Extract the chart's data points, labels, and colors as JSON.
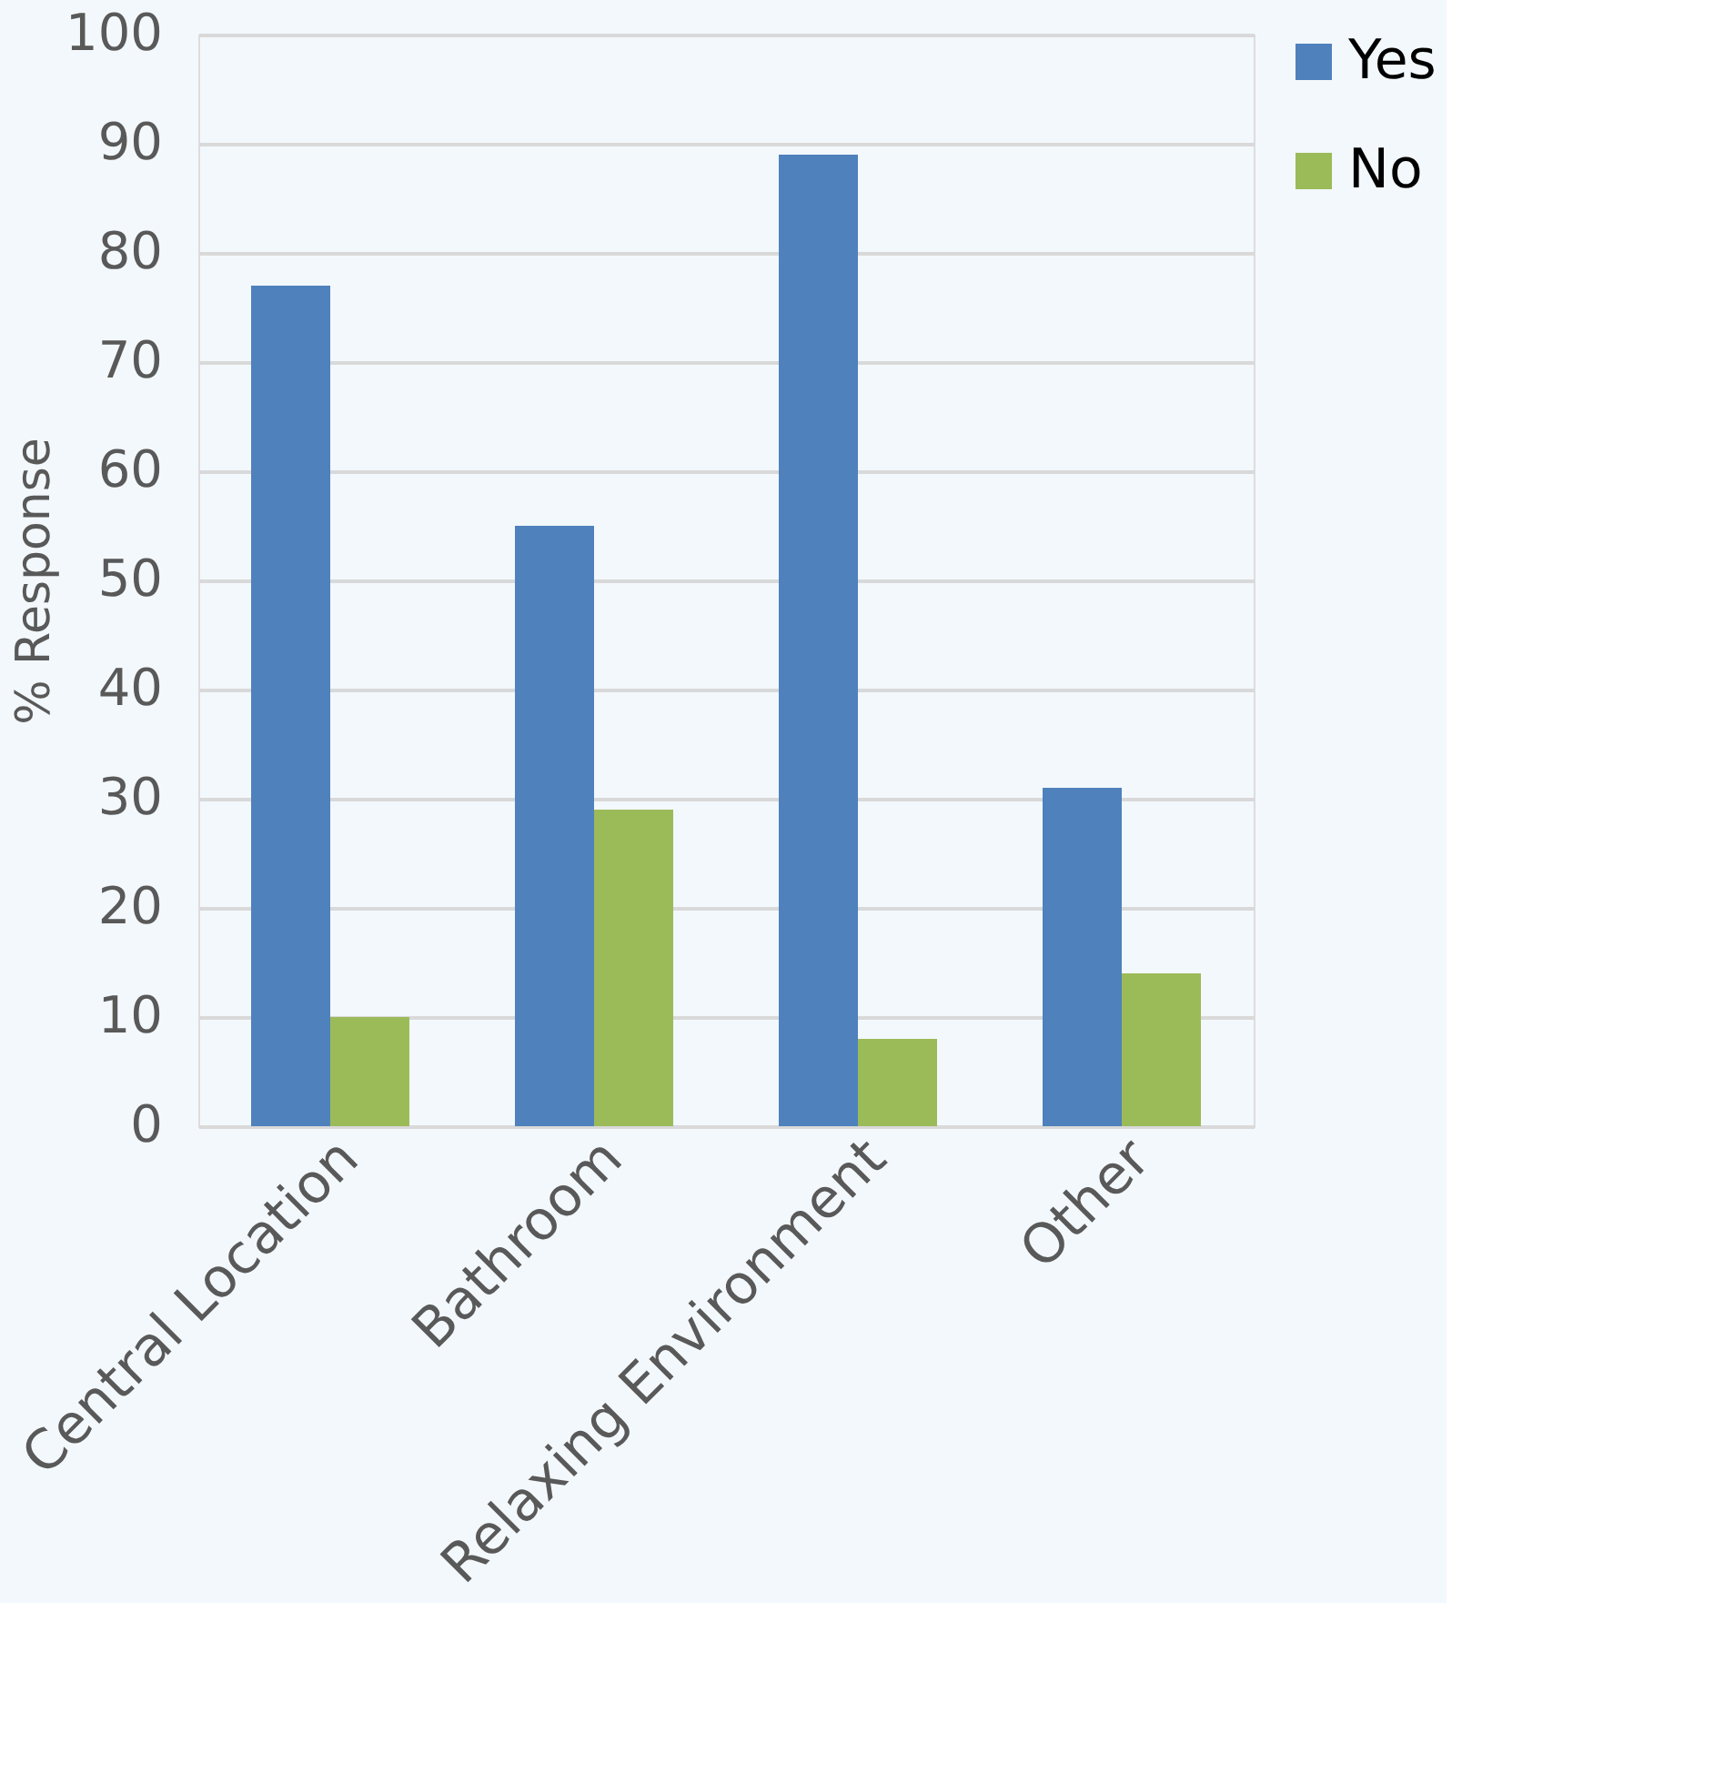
{
  "chart_data": {
    "type": "bar",
    "ylabel": "% Response",
    "categories": [
      "Central Location",
      "Bathroom",
      "Relaxing Environment",
      "Other"
    ],
    "series": [
      {
        "name": "Yes",
        "color": "#4f81bd",
        "values": [
          77,
          55,
          89,
          31
        ]
      },
      {
        "name": "No",
        "color": "#9bbb59",
        "values": [
          10,
          29,
          8,
          14
        ]
      }
    ],
    "ylim": [
      0,
      100
    ],
    "yticks": [
      0,
      10,
      20,
      30,
      40,
      50,
      60,
      70,
      80,
      90,
      100
    ],
    "grid": "y",
    "legend": "right"
  }
}
